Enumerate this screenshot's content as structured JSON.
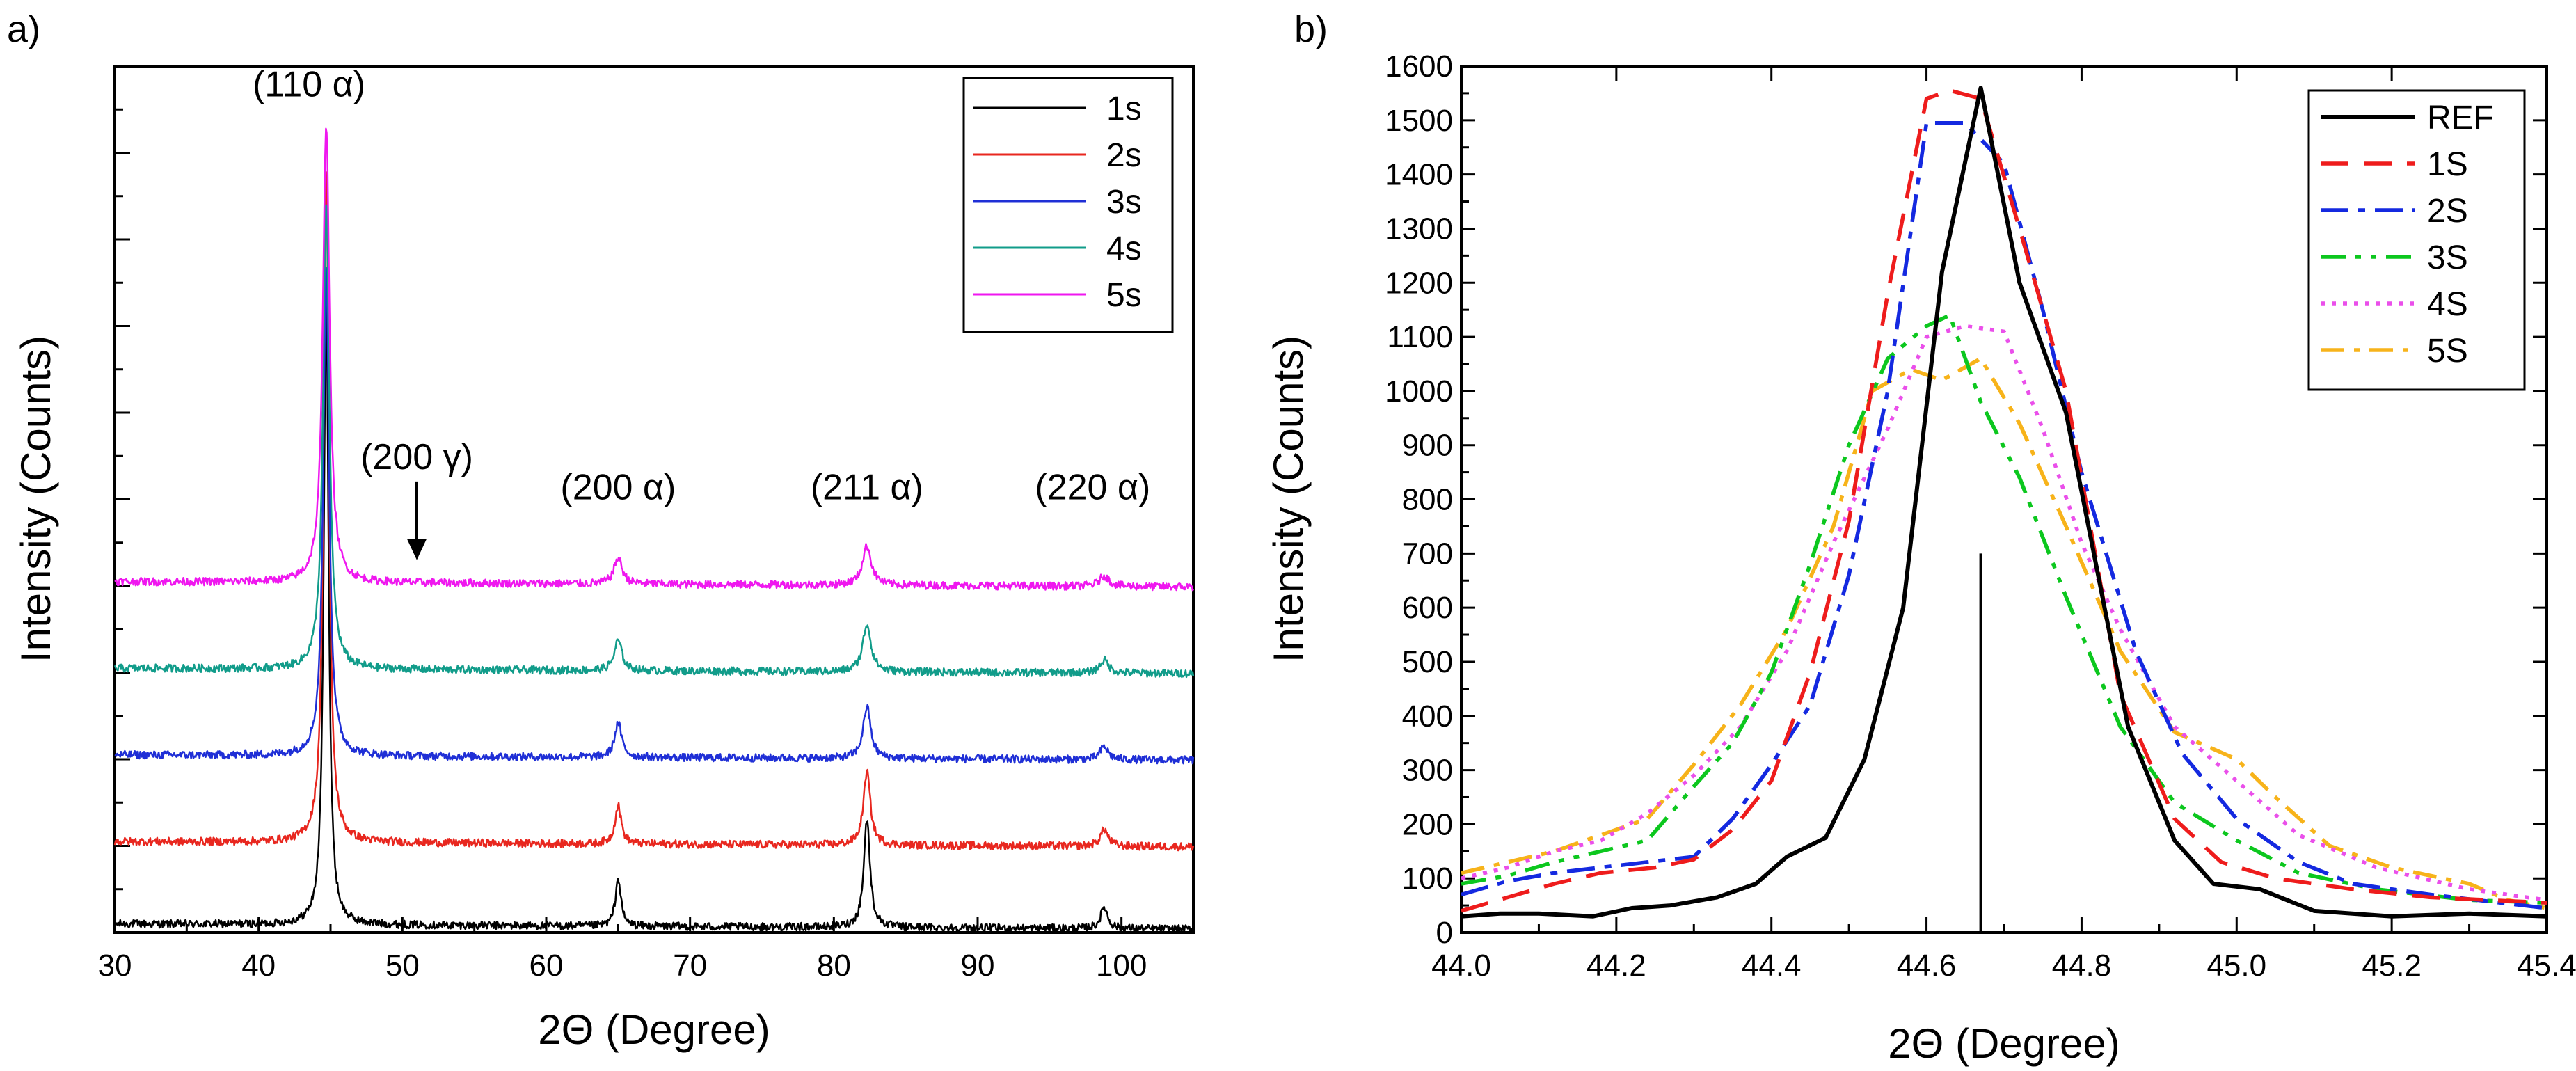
{
  "figure": {
    "panel_a_label": "a)",
    "panel_b_label": "b)"
  },
  "chart_data": [
    {
      "type": "line",
      "title": "",
      "xlabel": "2Θ (Degree)",
      "ylabel": "Intensity (Counts)",
      "xlim": [
        30,
        105
      ],
      "ylim": [
        0,
        10
      ],
      "xticks": [
        30,
        40,
        50,
        60,
        70,
        80,
        90,
        100
      ],
      "xtick_labels": [
        "30",
        "40",
        "50",
        "60",
        "70",
        "80",
        "90",
        "100"
      ],
      "y_tick_labels_shown": false,
      "legend_position": "top-right",
      "note": "stacked XRD patterns, each series offset vertically (offset in arbitrary intensity units)",
      "series": [
        {
          "name": "1s",
          "color": "#000000",
          "offset": 0.1,
          "peaks": [
            {
              "x": 44.7,
              "h": 7.3,
              "w": 0.35
            },
            {
              "x": 65.0,
              "h": 0.55,
              "w": 0.4
            },
            {
              "x": 82.3,
              "h": 1.25,
              "w": 0.45
            },
            {
              "x": 98.8,
              "h": 0.25,
              "w": 0.5
            }
          ]
        },
        {
          "name": "2s",
          "color": "#e8271f",
          "offset": 1.05,
          "peaks": [
            {
              "x": 44.7,
              "h": 7.8,
              "w": 0.38
            },
            {
              "x": 65.0,
              "h": 0.45,
              "w": 0.45
            },
            {
              "x": 82.3,
              "h": 0.85,
              "w": 0.5
            },
            {
              "x": 98.8,
              "h": 0.2,
              "w": 0.55
            }
          ]
        },
        {
          "name": "3s",
          "color": "#1f2fd6",
          "offset": 2.05,
          "peaks": [
            {
              "x": 44.7,
              "h": 5.7,
              "w": 0.42
            },
            {
              "x": 65.0,
              "h": 0.4,
              "w": 0.5
            },
            {
              "x": 82.3,
              "h": 0.6,
              "w": 0.55
            },
            {
              "x": 98.8,
              "h": 0.15,
              "w": 0.6
            }
          ]
        },
        {
          "name": "4s",
          "color": "#119c8a",
          "offset": 3.05,
          "peaks": [
            {
              "x": 44.7,
              "h": 5.4,
              "w": 0.45
            },
            {
              "x": 65.0,
              "h": 0.35,
              "w": 0.55
            },
            {
              "x": 82.3,
              "h": 0.55,
              "w": 0.6
            },
            {
              "x": 98.8,
              "h": 0.15,
              "w": 0.65
            }
          ]
        },
        {
          "name": "5s",
          "color": "#ef17ef",
          "offset": 4.05,
          "peaks": [
            {
              "x": 44.7,
              "h": 5.3,
              "w": 0.48
            },
            {
              "x": 65.0,
              "h": 0.3,
              "w": 0.6
            },
            {
              "x": 82.3,
              "h": 0.45,
              "w": 0.65
            },
            {
              "x": 98.8,
              "h": 0.12,
              "w": 0.7
            }
          ]
        }
      ],
      "annotations": [
        {
          "text": "(110 α)",
          "x": 43.5,
          "y": 9.65
        },
        {
          "text": "(200 γ)",
          "x": 51.0,
          "y": 5.35,
          "arrow_to": [
            51.0,
            4.3
          ]
        },
        {
          "text": "(200 α)",
          "x": 65.0,
          "y": 5.0
        },
        {
          "text": "(211 α)",
          "x": 82.3,
          "y": 5.0
        },
        {
          "text": "(220 α)",
          "x": 98.0,
          "y": 5.0
        }
      ]
    },
    {
      "type": "line",
      "title": "",
      "xlabel": "2Θ (Degree)",
      "ylabel": "Intensity (Counts)",
      "xlim": [
        44.0,
        45.4
      ],
      "ylim": [
        0,
        1600
      ],
      "xticks": [
        44.0,
        44.2,
        44.4,
        44.6,
        44.8,
        45.0,
        45.2,
        45.4
      ],
      "xtick_labels": [
        "44.0",
        "44.2",
        "44.4",
        "44.6",
        "44.8",
        "45.0",
        "45.2",
        "45.4"
      ],
      "yticks": [
        0,
        100,
        200,
        300,
        400,
        500,
        600,
        700,
        800,
        900,
        1000,
        1100,
        1200,
        1300,
        1400,
        1500,
        1600
      ],
      "ytick_labels": [
        "0",
        "100",
        "200",
        "300",
        "400",
        "500",
        "600",
        "700",
        "800",
        "900",
        "1000",
        "1100",
        "1200",
        "1300",
        "1400",
        "1500",
        "1600"
      ],
      "legend_position": "top-right",
      "reference_line": {
        "x": 44.67,
        "y_from": 0,
        "y_to": 700
      },
      "series": [
        {
          "name": "REF",
          "color": "#000000",
          "dash": "",
          "x": [
            44.0,
            44.05,
            44.1,
            44.17,
            44.22,
            44.27,
            44.33,
            44.38,
            44.42,
            44.47,
            44.52,
            44.57,
            44.62,
            44.67,
            44.72,
            44.78,
            44.86,
            44.92,
            44.97,
            45.03,
            45.1,
            45.2,
            45.3,
            45.4
          ],
          "y": [
            30,
            35,
            35,
            30,
            45,
            50,
            65,
            90,
            140,
            175,
            320,
            600,
            1220,
            1560,
            1200,
            960,
            380,
            170,
            90,
            80,
            40,
            30,
            35,
            30
          ]
        },
        {
          "name": "1S",
          "color": "#ee1c1c",
          "dash": "40 22",
          "x": [
            44.0,
            44.06,
            44.12,
            44.18,
            44.25,
            44.3,
            44.35,
            44.4,
            44.45,
            44.5,
            44.55,
            44.6,
            44.63,
            44.67,
            44.72,
            44.78,
            44.85,
            44.92,
            44.98,
            45.05,
            45.15,
            45.25,
            45.4
          ],
          "y": [
            40,
            65,
            90,
            110,
            120,
            135,
            190,
            280,
            480,
            760,
            1180,
            1540,
            1555,
            1540,
            1300,
            1000,
            440,
            210,
            130,
            100,
            80,
            65,
            55
          ]
        },
        {
          "name": "2S",
          "color": "#1429e0",
          "dash": "40 14 10 14",
          "x": [
            44.0,
            44.06,
            44.12,
            44.18,
            44.24,
            44.3,
            44.35,
            44.4,
            44.45,
            44.5,
            44.55,
            44.6,
            44.65,
            44.7,
            44.75,
            44.8,
            44.87,
            44.93,
            45.0,
            45.08,
            45.15,
            45.25,
            45.4
          ],
          "y": [
            70,
            95,
            110,
            120,
            130,
            140,
            210,
            310,
            420,
            660,
            1000,
            1495,
            1495,
            1420,
            1150,
            850,
            520,
            330,
            210,
            130,
            90,
            70,
            45
          ]
        },
        {
          "name": "3S",
          "color": "#0cc71e",
          "dash": "36 14 8 14 8 14",
          "x": [
            44.0,
            44.06,
            44.12,
            44.18,
            44.24,
            44.3,
            44.35,
            44.4,
            44.45,
            44.5,
            44.55,
            44.6,
            44.63,
            44.67,
            44.72,
            44.78,
            44.85,
            44.92,
            45.0,
            45.08,
            45.18,
            45.3,
            45.4
          ],
          "y": [
            90,
            105,
            130,
            150,
            170,
            270,
            350,
            480,
            680,
            900,
            1060,
            1120,
            1140,
            980,
            840,
            620,
            380,
            240,
            170,
            110,
            80,
            60,
            55
          ]
        },
        {
          "name": "4S",
          "color": "#ea4fea",
          "dash": "6 10",
          "x": [
            44.0,
            44.06,
            44.12,
            44.18,
            44.24,
            44.3,
            44.36,
            44.42,
            44.48,
            44.55,
            44.6,
            44.65,
            44.7,
            44.75,
            44.8,
            44.85,
            44.92,
            45.0,
            45.08,
            45.18,
            45.3,
            45.4
          ],
          "y": [
            100,
            120,
            150,
            170,
            220,
            290,
            380,
            520,
            720,
            930,
            1100,
            1120,
            1110,
            930,
            720,
            560,
            380,
            280,
            180,
            120,
            80,
            60
          ]
        },
        {
          "name": "5S",
          "color": "#f7b31a",
          "dash": "34 14 8 14",
          "x": [
            44.0,
            44.06,
            44.12,
            44.18,
            44.24,
            44.3,
            44.36,
            44.42,
            44.48,
            44.53,
            44.58,
            44.62,
            44.67,
            44.72,
            44.78,
            44.85,
            44.92,
            45.0,
            45.05,
            45.12,
            45.2,
            45.3,
            45.35,
            45.4
          ],
          "y": [
            110,
            130,
            150,
            180,
            210,
            310,
            420,
            560,
            750,
            1000,
            1040,
            1020,
            1060,
            940,
            750,
            520,
            370,
            320,
            250,
            160,
            120,
            90,
            60,
            45
          ]
        }
      ]
    }
  ]
}
